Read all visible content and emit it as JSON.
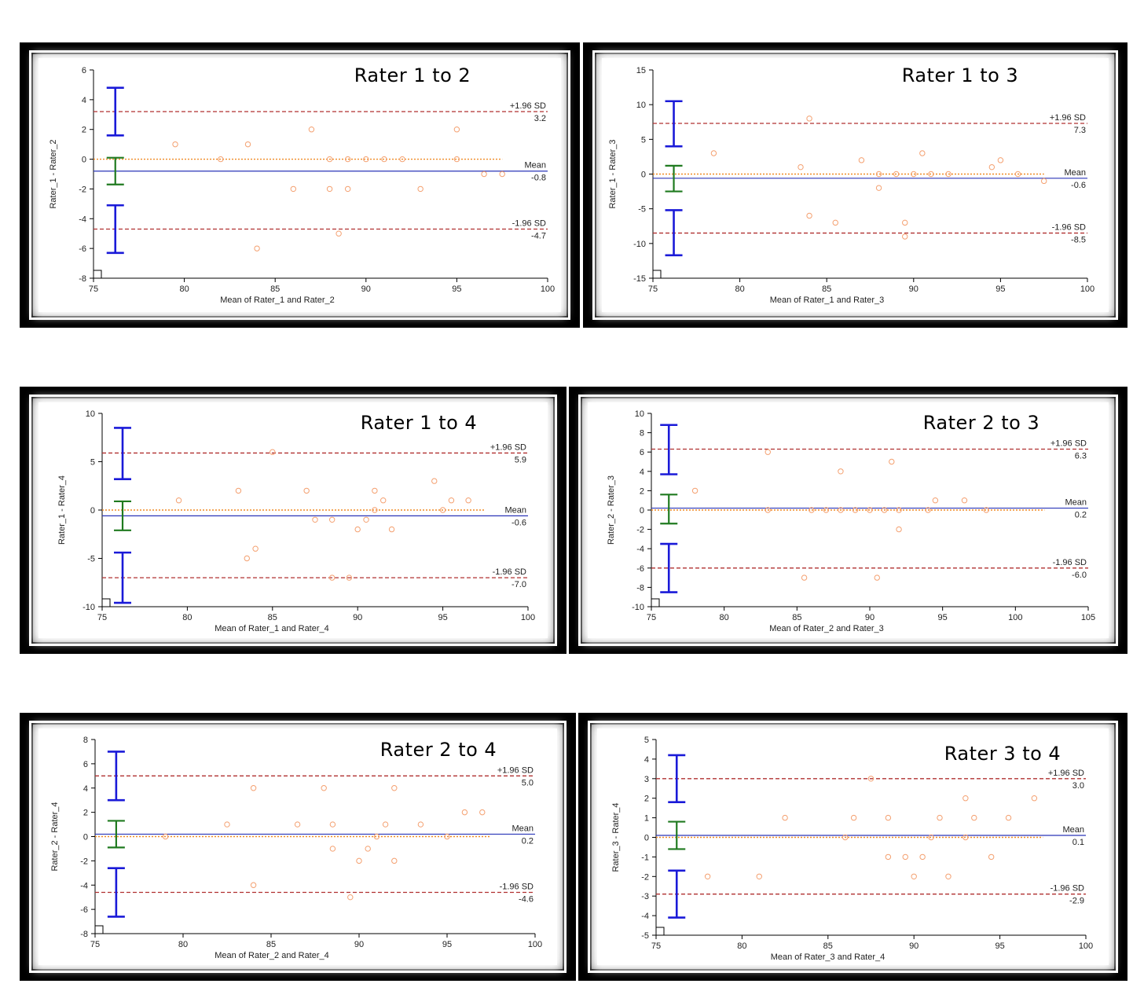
{
  "chart_data": [
    {
      "type": "scatter",
      "title": "Rater 1 to 2",
      "xlabel": "Mean of Rater_1 and Rater_2",
      "ylabel": "Rater_1 - Rater_2",
      "xlim": [
        75,
        100
      ],
      "ylim": [
        -8,
        6
      ],
      "xticks": [
        75,
        80,
        85,
        90,
        95,
        100
      ],
      "yticks": [
        -8,
        -6,
        -4,
        -2,
        0,
        2,
        4,
        6
      ],
      "mean": -0.8,
      "upper": 3.2,
      "lower": -4.7,
      "upper_label": "+1.96 SD",
      "mean_label": "Mean",
      "lower_label": "-1.96 SD",
      "upper_value_text": "3.2",
      "mean_value_text": "-0.8",
      "lower_value_text": "-4.7",
      "ci_upper": [
        1.6,
        4.8
      ],
      "ci_mean": [
        -1.7,
        0.1
      ],
      "ci_lower": [
        -6.3,
        -3.1
      ],
      "points": [
        [
          79.5,
          1
        ],
        [
          82,
          0
        ],
        [
          83.5,
          1
        ],
        [
          84,
          -6
        ],
        [
          86,
          -2
        ],
        [
          87,
          2
        ],
        [
          88,
          -2
        ],
        [
          88,
          0
        ],
        [
          88.5,
          -5
        ],
        [
          89,
          -2
        ],
        [
          89,
          0
        ],
        [
          90,
          0
        ],
        [
          91,
          0
        ],
        [
          92,
          0
        ],
        [
          93,
          -2
        ],
        [
          95,
          2
        ],
        [
          95,
          0
        ],
        [
          96.5,
          -1
        ],
        [
          97.5,
          -1
        ]
      ]
    },
    {
      "type": "scatter",
      "title": "Rater 1 to 3",
      "xlabel": "Mean of Rater_1 and Rater_3",
      "ylabel": "Rater_1 - Rater_3",
      "xlim": [
        75,
        100
      ],
      "ylim": [
        -15,
        15
      ],
      "xticks": [
        75,
        80,
        85,
        90,
        95,
        100
      ],
      "yticks": [
        -15,
        -10,
        -5,
        0,
        5,
        10,
        15
      ],
      "mean": -0.6,
      "upper": 7.3,
      "lower": -8.5,
      "upper_label": "+1.96 SD",
      "mean_label": "Mean",
      "lower_label": "-1.96 SD",
      "upper_value_text": "7.3",
      "mean_value_text": "-0.6",
      "lower_value_text": "-8.5",
      "ci_upper": [
        4,
        10.5
      ],
      "ci_mean": [
        -2.5,
        1.2
      ],
      "ci_lower": [
        -11.7,
        -5.2
      ],
      "points": [
        [
          78.5,
          3
        ],
        [
          83.5,
          1
        ],
        [
          84,
          8
        ],
        [
          84,
          -6
        ],
        [
          85.5,
          -7
        ],
        [
          87,
          2
        ],
        [
          88,
          -2
        ],
        [
          88,
          0
        ],
        [
          89,
          0
        ],
        [
          89.5,
          -7
        ],
        [
          89.5,
          -9
        ],
        [
          90,
          0
        ],
        [
          90.5,
          3
        ],
        [
          91,
          0
        ],
        [
          92,
          0
        ],
        [
          94.5,
          1
        ],
        [
          95,
          2
        ],
        [
          96,
          0
        ],
        [
          97.5,
          -1
        ]
      ]
    },
    {
      "type": "scatter",
      "title": "Rater 1 to 4",
      "xlabel": "Mean of Rater_1 and Rater_4",
      "ylabel": "Rater_1 - Rater_4",
      "xlim": [
        75,
        100
      ],
      "ylim": [
        -10,
        10
      ],
      "xticks": [
        75,
        80,
        85,
        90,
        95,
        100
      ],
      "yticks": [
        -10,
        -5,
        0,
        5,
        10
      ],
      "mean": -0.6,
      "upper": 5.9,
      "lower": -7.0,
      "upper_label": "+1.96 SD",
      "mean_label": "Mean",
      "lower_label": "-1.96 SD",
      "upper_value_text": "5.9",
      "mean_value_text": "-0.6",
      "lower_value_text": "-7.0",
      "ci_upper": [
        3.2,
        8.5
      ],
      "ci_mean": [
        -2.1,
        0.9
      ],
      "ci_lower": [
        -9.6,
        -4.4
      ],
      "points": [
        [
          79.5,
          1
        ],
        [
          83,
          2
        ],
        [
          83.5,
          -5
        ],
        [
          84,
          -4
        ],
        [
          85,
          6
        ],
        [
          87,
          2
        ],
        [
          87.5,
          -1
        ],
        [
          88.5,
          -1
        ],
        [
          88.5,
          -7
        ],
        [
          89.5,
          -7
        ],
        [
          90,
          -2
        ],
        [
          90.5,
          -1
        ],
        [
          91,
          2
        ],
        [
          91,
          0
        ],
        [
          91.5,
          1
        ],
        [
          92,
          -2
        ],
        [
          94.5,
          3
        ],
        [
          95,
          0
        ],
        [
          95.5,
          1
        ],
        [
          96.5,
          1
        ]
      ]
    },
    {
      "type": "scatter",
      "title": "Rater 2 to 3",
      "xlabel": "Mean of Rater_2 and Rater_3",
      "ylabel": "Rater_2 - Rater_3",
      "xlim": [
        75,
        105
      ],
      "ylim": [
        -10,
        10
      ],
      "xticks": [
        75,
        80,
        85,
        90,
        95,
        100,
        105
      ],
      "yticks": [
        -10,
        -8,
        -6,
        -4,
        -2,
        0,
        2,
        4,
        6,
        8,
        10
      ],
      "mean": 0.2,
      "upper": 6.3,
      "lower": -6.0,
      "upper_label": "+1.96 SD",
      "mean_label": "Mean",
      "lower_label": "-1.96 SD",
      "upper_value_text": "6.3",
      "mean_value_text": "0.2",
      "lower_value_text": "-6.0",
      "ci_upper": [
        3.7,
        8.8
      ],
      "ci_mean": [
        -1.4,
        1.6
      ],
      "ci_lower": [
        -8.5,
        -3.5
      ],
      "points": [
        [
          78,
          2
        ],
        [
          83,
          6
        ],
        [
          83,
          0
        ],
        [
          85.5,
          -7
        ],
        [
          86,
          0
        ],
        [
          87,
          0
        ],
        [
          88,
          4
        ],
        [
          88,
          0
        ],
        [
          89,
          0
        ],
        [
          90,
          0
        ],
        [
          90.5,
          -7
        ],
        [
          91,
          0
        ],
        [
          91.5,
          5
        ],
        [
          92,
          -2
        ],
        [
          92,
          0
        ],
        [
          94,
          0
        ],
        [
          94.5,
          1
        ],
        [
          96.5,
          1
        ],
        [
          98,
          0
        ]
      ]
    },
    {
      "type": "scatter",
      "title": "Rater 2 to 4",
      "xlabel": "Mean of Rater_2 and Rater_4",
      "ylabel": "Rater_2 - Rater_4",
      "xlim": [
        75,
        100
      ],
      "ylim": [
        -8,
        8
      ],
      "xticks": [
        75,
        80,
        85,
        90,
        95,
        100
      ],
      "yticks": [
        -8,
        -6,
        -4,
        -2,
        0,
        2,
        4,
        6,
        8
      ],
      "mean": 0.2,
      "upper": 5.0,
      "lower": -4.6,
      "upper_label": "+1.96 SD",
      "mean_label": "Mean",
      "lower_label": "-1.96 SD",
      "upper_value_text": "5.0",
      "mean_value_text": "0.2",
      "lower_value_text": "-4.6",
      "ci_upper": [
        3,
        7
      ],
      "ci_mean": [
        -0.9,
        1.3
      ],
      "ci_lower": [
        -6.6,
        -2.6
      ],
      "points": [
        [
          79,
          0
        ],
        [
          82.5,
          1
        ],
        [
          84,
          4
        ],
        [
          84,
          -4
        ],
        [
          86.5,
          1
        ],
        [
          88,
          4
        ],
        [
          88.5,
          1
        ],
        [
          88.5,
          -1
        ],
        [
          89.5,
          -5
        ],
        [
          90,
          -2
        ],
        [
          90.5,
          -1
        ],
        [
          91,
          0
        ],
        [
          91.5,
          1
        ],
        [
          92,
          4
        ],
        [
          92,
          -2
        ],
        [
          93.5,
          1
        ],
        [
          95,
          0
        ],
        [
          96,
          2
        ],
        [
          97,
          2
        ]
      ]
    },
    {
      "type": "scatter",
      "title": "Rater 3 to 4",
      "xlabel": "Mean of Rater_3 and Rater_4",
      "ylabel": "Rater_3 - Rater_4",
      "xlim": [
        75,
        100
      ],
      "ylim": [
        -5,
        5
      ],
      "xticks": [
        75,
        80,
        85,
        90,
        95,
        100
      ],
      "yticks": [
        -5,
        -4,
        -3,
        -2,
        -1,
        0,
        1,
        2,
        3,
        4,
        5
      ],
      "mean": 0.1,
      "upper": 3.0,
      "lower": -2.9,
      "upper_label": "+1.96 SD",
      "mean_label": "Mean",
      "lower_label": "-1.96 SD",
      "upper_value_text": "3.0",
      "mean_value_text": "0.1",
      "lower_value_text": "-2.9",
      "ci_upper": [
        1.8,
        4.2
      ],
      "ci_mean": [
        -0.6,
        0.8
      ],
      "ci_lower": [
        -4.1,
        -1.7
      ],
      "points": [
        [
          78,
          -2
        ],
        [
          81,
          -2
        ],
        [
          82.5,
          1
        ],
        [
          86,
          0
        ],
        [
          86.5,
          1
        ],
        [
          87.5,
          3
        ],
        [
          88.5,
          1
        ],
        [
          88.5,
          -1
        ],
        [
          89.5,
          -1
        ],
        [
          90,
          -2
        ],
        [
          90.5,
          -1
        ],
        [
          91,
          0
        ],
        [
          91.5,
          1
        ],
        [
          92,
          -2
        ],
        [
          93,
          2
        ],
        [
          93,
          0
        ],
        [
          93.5,
          1
        ],
        [
          94.5,
          -1
        ],
        [
          95.5,
          1
        ],
        [
          97,
          2
        ]
      ]
    }
  ]
}
